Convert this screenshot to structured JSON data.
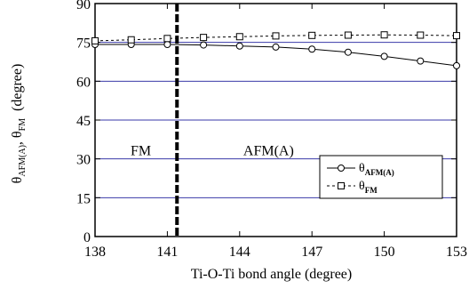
{
  "chart_data": {
    "type": "line",
    "xlabel": "Ti-O-Ti bond angle (degree)",
    "ylabel": {
      "theta1": "θ",
      "sub1": "AFM(A)",
      "sep": ", ",
      "theta2": "θ",
      "sub2": "FM",
      "unit": "(degree)"
    },
    "xlim": [
      138,
      153
    ],
    "ylim": [
      0,
      90
    ],
    "x_ticks": [
      138,
      141,
      144,
      147,
      150,
      153
    ],
    "y_ticks": [
      0,
      15,
      30,
      45,
      60,
      75,
      90
    ],
    "x_tick_labels": [
      "138",
      "141",
      "144",
      "147",
      "150",
      "153"
    ],
    "y_tick_labels": [
      "0",
      "15",
      "30",
      "45",
      "60",
      "75",
      "90"
    ],
    "grid": "horizontal",
    "colors": {
      "grid": "#3a3aa8",
      "series": "#000000",
      "vline": "#000000"
    },
    "series": [
      {
        "name": "θ",
        "name_sub": "AFM(A)",
        "marker": "circle",
        "linestyle": "solid",
        "x": [
          138.0,
          139.5,
          141.0,
          142.5,
          144.0,
          145.5,
          147.0,
          148.5,
          150.0,
          151.5,
          153.0
        ],
        "y": [
          74.2,
          74.2,
          74.2,
          74.0,
          73.6,
          73.2,
          72.4,
          71.2,
          69.6,
          67.8,
          66.0
        ]
      },
      {
        "name": "θ",
        "name_sub": "FM",
        "marker": "square",
        "linestyle": "dashed",
        "x": [
          138.0,
          139.5,
          141.0,
          142.5,
          144.0,
          145.5,
          147.0,
          148.5,
          150.0,
          151.5,
          153.0
        ],
        "y": [
          75.6,
          76.0,
          76.5,
          76.9,
          77.2,
          77.5,
          77.7,
          77.8,
          77.9,
          77.8,
          77.6
        ]
      }
    ],
    "vertical_line": {
      "x": 141.4,
      "style": "thick-dashed"
    },
    "annotations": [
      {
        "text": "FM",
        "x": 139.9,
        "y": 31.5
      },
      {
        "text": "AFM(A)",
        "x": 145.2,
        "y": 31.5
      }
    ],
    "legend": {
      "placement": "center-right"
    }
  }
}
